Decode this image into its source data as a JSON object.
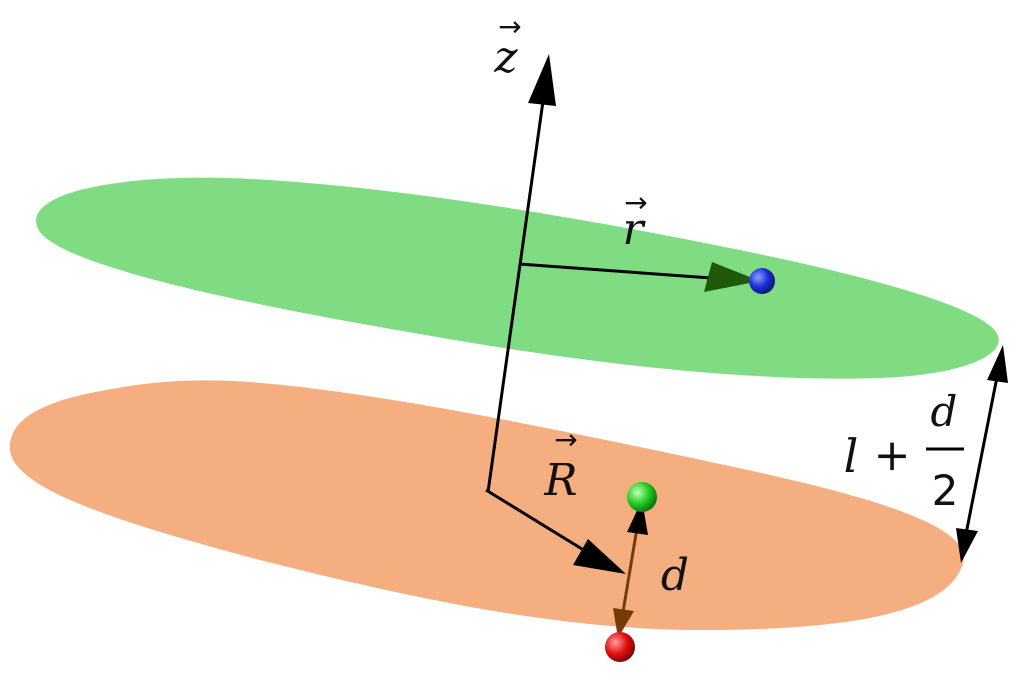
{
  "labels": {
    "z_axis": "z",
    "r_vector": "r",
    "R_vector": "R",
    "d_label": "d",
    "separation_l": "l",
    "separation_plus": "+",
    "separation_numerator": "d",
    "separation_denominator": "2"
  },
  "vector_marker": "→",
  "colors": {
    "upper_plane": "#7fdc82",
    "lower_plane": "#f4ae80",
    "axis": "#000000",
    "r_arrow_head": "#1f5a0c",
    "d_arrow_shaft": "#7a3a08",
    "blue_sphere": "#1a2fd6",
    "green_sphere": "#22cc22",
    "red_sphere": "#e01010"
  }
}
